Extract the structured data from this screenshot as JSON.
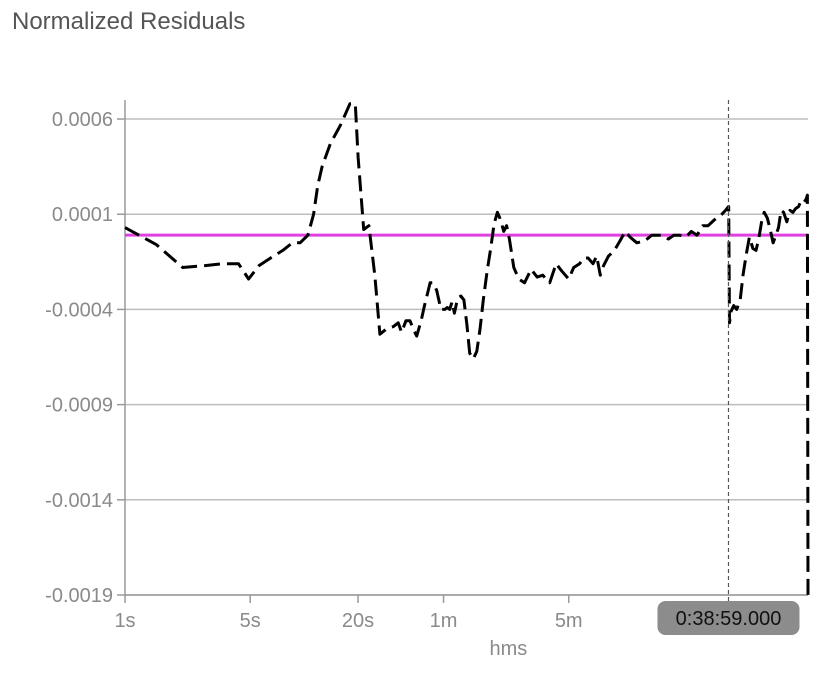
{
  "chart_data": {
    "type": "line",
    "title": "Normalized Residuals",
    "xlabel": "hms",
    "ylabel": "",
    "x_scale": "log",
    "x_unit": "seconds",
    "xlim": [
      1,
      6500
    ],
    "ylim": [
      -0.0019,
      0.0007
    ],
    "y_ticks": [
      0.0006,
      0.0001,
      -0.0004,
      -0.0009,
      -0.0014,
      -0.0019
    ],
    "y_tick_labels": [
      "0.0006",
      "0.0001",
      "-0.0004",
      "-0.0009",
      "-0.0014",
      "-0.0019"
    ],
    "x_ticks": [
      1,
      5,
      20,
      60,
      300
    ],
    "x_tick_labels": [
      "1s",
      "5s",
      "20s",
      "1m",
      "5m"
    ],
    "grid": "horizontal",
    "reference_line": {
      "y": -1e-05,
      "color": "#e040e0"
    },
    "cursor": {
      "x": 2339,
      "label": "0:38:59.000"
    },
    "series": [
      {
        "style": "dashed",
        "color": "#000000",
        "x": [
          1,
          1.5,
          2.1,
          2.8,
          3.5,
          4.3,
          4.9,
          5.6,
          6.5,
          7.6,
          8.6,
          9.5,
          10.5,
          11.3,
          11.9,
          12.6,
          14,
          16,
          18,
          19.3,
          20,
          21.5,
          23,
          24.8,
          26.5,
          29,
          31.5,
          33.5,
          35,
          37,
          39,
          41,
          42.5,
          45,
          47,
          49,
          50.5,
          52.5,
          55,
          58,
          61,
          63,
          65,
          67,
          69,
          72,
          75,
          78,
          81,
          84,
          88,
          92,
          96,
          100,
          105,
          110,
          115,
          120,
          125,
          130,
          135,
          140,
          148,
          158,
          170,
          185,
          200,
          215,
          235,
          255,
          275,
          300,
          320,
          345,
          365,
          385,
          410,
          430,
          450,
          470,
          500,
          540,
          580,
          620,
          660,
          720,
          800,
          870,
          940,
          1000,
          1080,
          1160,
          1250,
          1350,
          1450,
          1560,
          1680,
          1800,
          1950,
          2100,
          2250,
          2339,
          2345,
          2370,
          2420,
          2500,
          2600,
          2720,
          2820,
          2940,
          3060,
          3200,
          3330,
          3450,
          3580,
          3700,
          3850,
          4000,
          4150,
          4300,
          4450,
          4600,
          4750,
          4950,
          5150,
          5350,
          5550,
          5750,
          5950,
          6150,
          6350,
          6450,
          6500
        ],
        "y": [
          3e-05,
          -6e-05,
          -0.00018,
          -0.00017,
          -0.00016,
          -0.00016,
          -0.00024,
          -0.00017,
          -0.00013,
          -9e-05,
          -5e-05,
          -5e-05,
          -1e-05,
          0.0001,
          0.00025,
          0.00035,
          0.00047,
          0.00057,
          0.00068,
          0.00068,
          0.0004,
          2e-05,
          4e-05,
          -0.00022,
          -0.00053,
          -0.0005,
          -0.00049,
          -0.00047,
          -0.00052,
          -0.00046,
          -0.00046,
          -0.00051,
          -0.00054,
          -0.00046,
          -0.00038,
          -0.00031,
          -0.00026,
          -0.00026,
          -0.0003,
          -0.0004,
          -0.0004,
          -0.00039,
          -0.0004,
          -0.00036,
          -0.00042,
          -0.00034,
          -0.00033,
          -0.00035,
          -0.00048,
          -0.00063,
          -0.00066,
          -0.00062,
          -0.0005,
          -0.00035,
          -0.0002,
          -8e-05,
          5e-05,
          0.00011,
          7e-05,
          1e-05,
          4e-05,
          -3e-05,
          -0.00018,
          -0.00024,
          -0.00026,
          -0.00019,
          -0.00023,
          -0.00022,
          -0.00026,
          -0.00016,
          -0.0002,
          -0.00024,
          -0.00018,
          -0.00016,
          -0.00013,
          -0.00013,
          -0.00016,
          -0.00012,
          -0.00022,
          -0.00017,
          -0.00012,
          -9e-05,
          -4e-05,
          1e-05,
          -2e-05,
          -5e-05,
          -4e-05,
          -1e-05,
          -1e-05,
          -1e-05,
          -3e-05,
          -1e-05,
          -1e-05,
          -2e-05,
          1e-05,
          -1e-05,
          4e-05,
          4e-05,
          7e-05,
          9e-05,
          0.00012,
          0.00014,
          0.00014,
          -0.00047,
          -0.00041,
          -0.00038,
          -0.0004,
          -0.00035,
          -0.00022,
          -0.00011,
          -2e-05,
          -8e-05,
          -9e-05,
          -3e-05,
          6e-05,
          0.00011,
          8e-05,
          2e-05,
          -5e-05,
          -1e-05,
          3e-05,
          0.00012,
          0.00011,
          6e-05,
          0.00012,
          0.00011,
          0.00013,
          0.00014,
          0.00017,
          0.00016,
          0.00018,
          0.0002,
          -0.0019
        ]
      }
    ]
  }
}
